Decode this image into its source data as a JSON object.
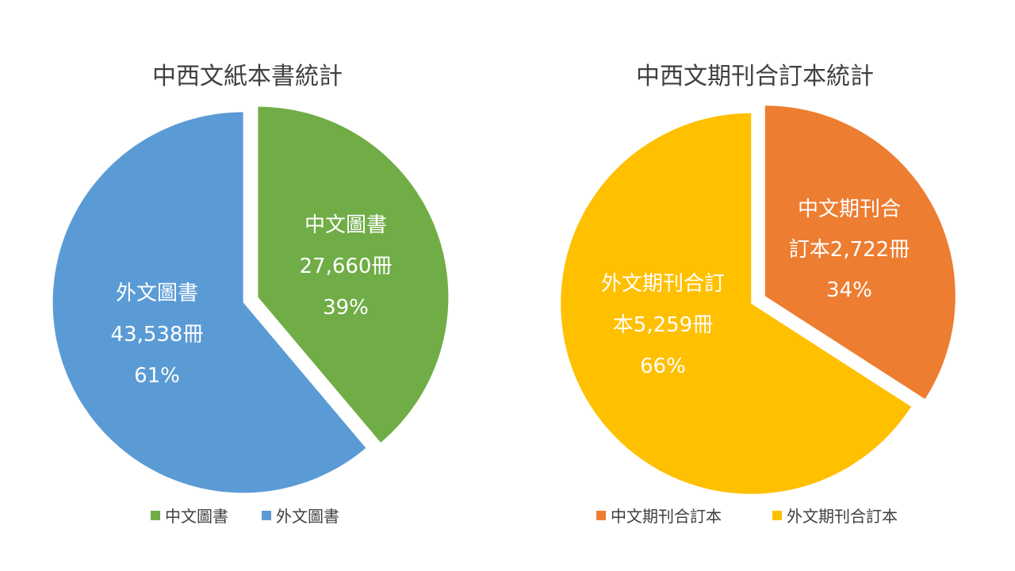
{
  "chart_data": [
    {
      "type": "pie",
      "title": "中西文紙本書統計",
      "slices": [
        {
          "name": "中文圖書",
          "value": 27660,
          "percent": 39,
          "color": "#70ad47",
          "label_lines": [
            "中文圖書",
            "27,660冊",
            "39%"
          ]
        },
        {
          "name": "外文圖書",
          "value": 43538,
          "percent": 61,
          "color": "#5b9bd5",
          "label_lines": [
            "外文圖書",
            "43,538冊",
            "61%"
          ]
        }
      ],
      "exploded": true,
      "legend": "bottom"
    },
    {
      "type": "pie",
      "title": "中西文期刊合訂本統計",
      "slices": [
        {
          "name": "中文期刊合訂本",
          "value": 2722,
          "percent": 34,
          "color": "#ed7d31",
          "label_lines": [
            "中文期刊合",
            "訂本2,722冊",
            "34%"
          ]
        },
        {
          "name": "外文期刊合訂本",
          "value": 5259,
          "percent": 66,
          "color": "#ffc000",
          "label_lines": [
            "外文期刊合訂",
            "本5,259冊",
            "66%"
          ]
        }
      ],
      "exploded": true,
      "legend": "bottom"
    }
  ]
}
